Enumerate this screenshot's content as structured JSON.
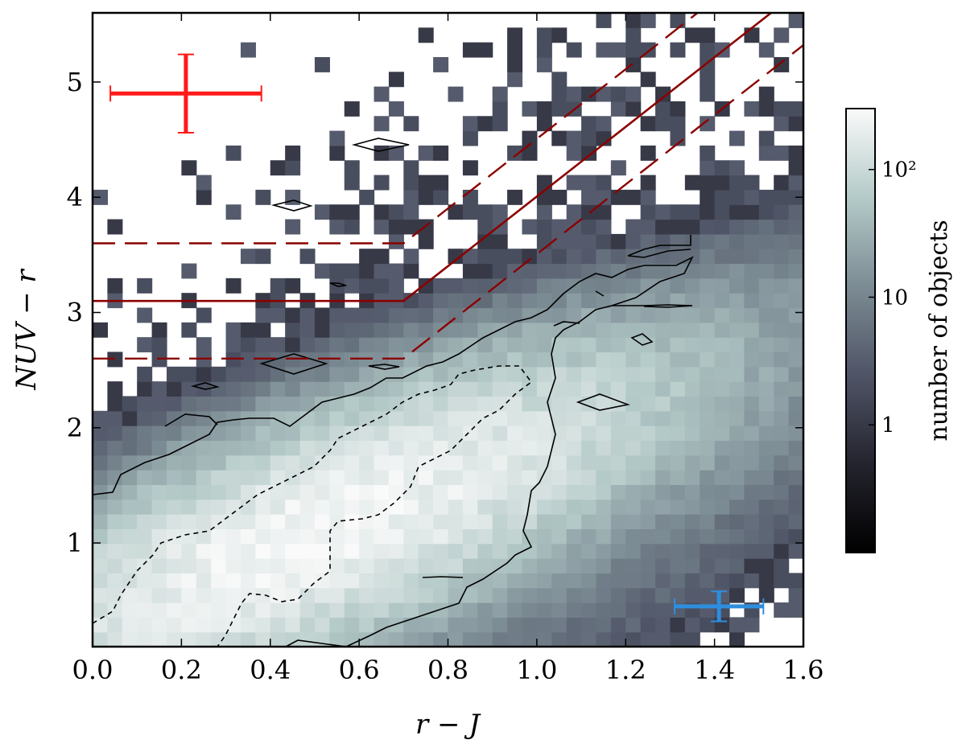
{
  "chart_data": {
    "type": "heatmap",
    "xlabel": "r − J",
    "ylabel": "NUV − r",
    "xlim": [
      0.0,
      1.6
    ],
    "ylim": [
      0.1,
      5.6
    ],
    "x_ticks": [
      {
        "value": 0.0,
        "label": "0.0"
      },
      {
        "value": 0.2,
        "label": "0.2"
      },
      {
        "value": 0.4,
        "label": "0.4"
      },
      {
        "value": 0.6,
        "label": "0.6"
      },
      {
        "value": 0.8,
        "label": "0.8"
      },
      {
        "value": 1.0,
        "label": "1.0"
      },
      {
        "value": 1.2,
        "label": "1.2"
      },
      {
        "value": 1.4,
        "label": "1.4"
      },
      {
        "value": 1.6,
        "label": "1.6"
      }
    ],
    "y_ticks": [
      {
        "value": 1,
        "label": "1"
      },
      {
        "value": 2,
        "label": "2"
      },
      {
        "value": 3,
        "label": "3"
      },
      {
        "value": 4,
        "label": "4"
      },
      {
        "value": 5,
        "label": "5"
      }
    ],
    "colorbar": {
      "label": "number of objects",
      "scale": "log",
      "range": [
        0.1,
        300
      ],
      "ticks": [
        {
          "value": 1,
          "label": "1"
        },
        {
          "value": 10,
          "label": "10"
        },
        {
          "value": 100,
          "label": "10²"
        }
      ]
    },
    "bins": {
      "nx": 48,
      "ny": 43
    },
    "selection_boundary": {
      "color": "#8b0000",
      "solid": [
        [
          0.0,
          3.1
        ],
        [
          0.7,
          3.1
        ],
        [
          1.6,
          5.82
        ]
      ],
      "dashed_upper": [
        [
          0.0,
          3.6
        ],
        [
          0.7,
          3.6
        ],
        [
          1.6,
          6.32
        ]
      ],
      "dashed_lower": [
        [
          0.0,
          2.6
        ],
        [
          0.7,
          2.6
        ],
        [
          1.6,
          5.32
        ]
      ]
    },
    "error_bars": [
      {
        "color": "#ff1a1a",
        "x": 0.21,
        "y": 4.9,
        "xerr": 0.17,
        "yerr": 0.34
      },
      {
        "color": "#2e8ede",
        "x": 1.41,
        "y": 0.45,
        "xerr": 0.1,
        "yerr": 0.13
      }
    ],
    "contour_levels": [
      "solid",
      "dashed"
    ]
  }
}
